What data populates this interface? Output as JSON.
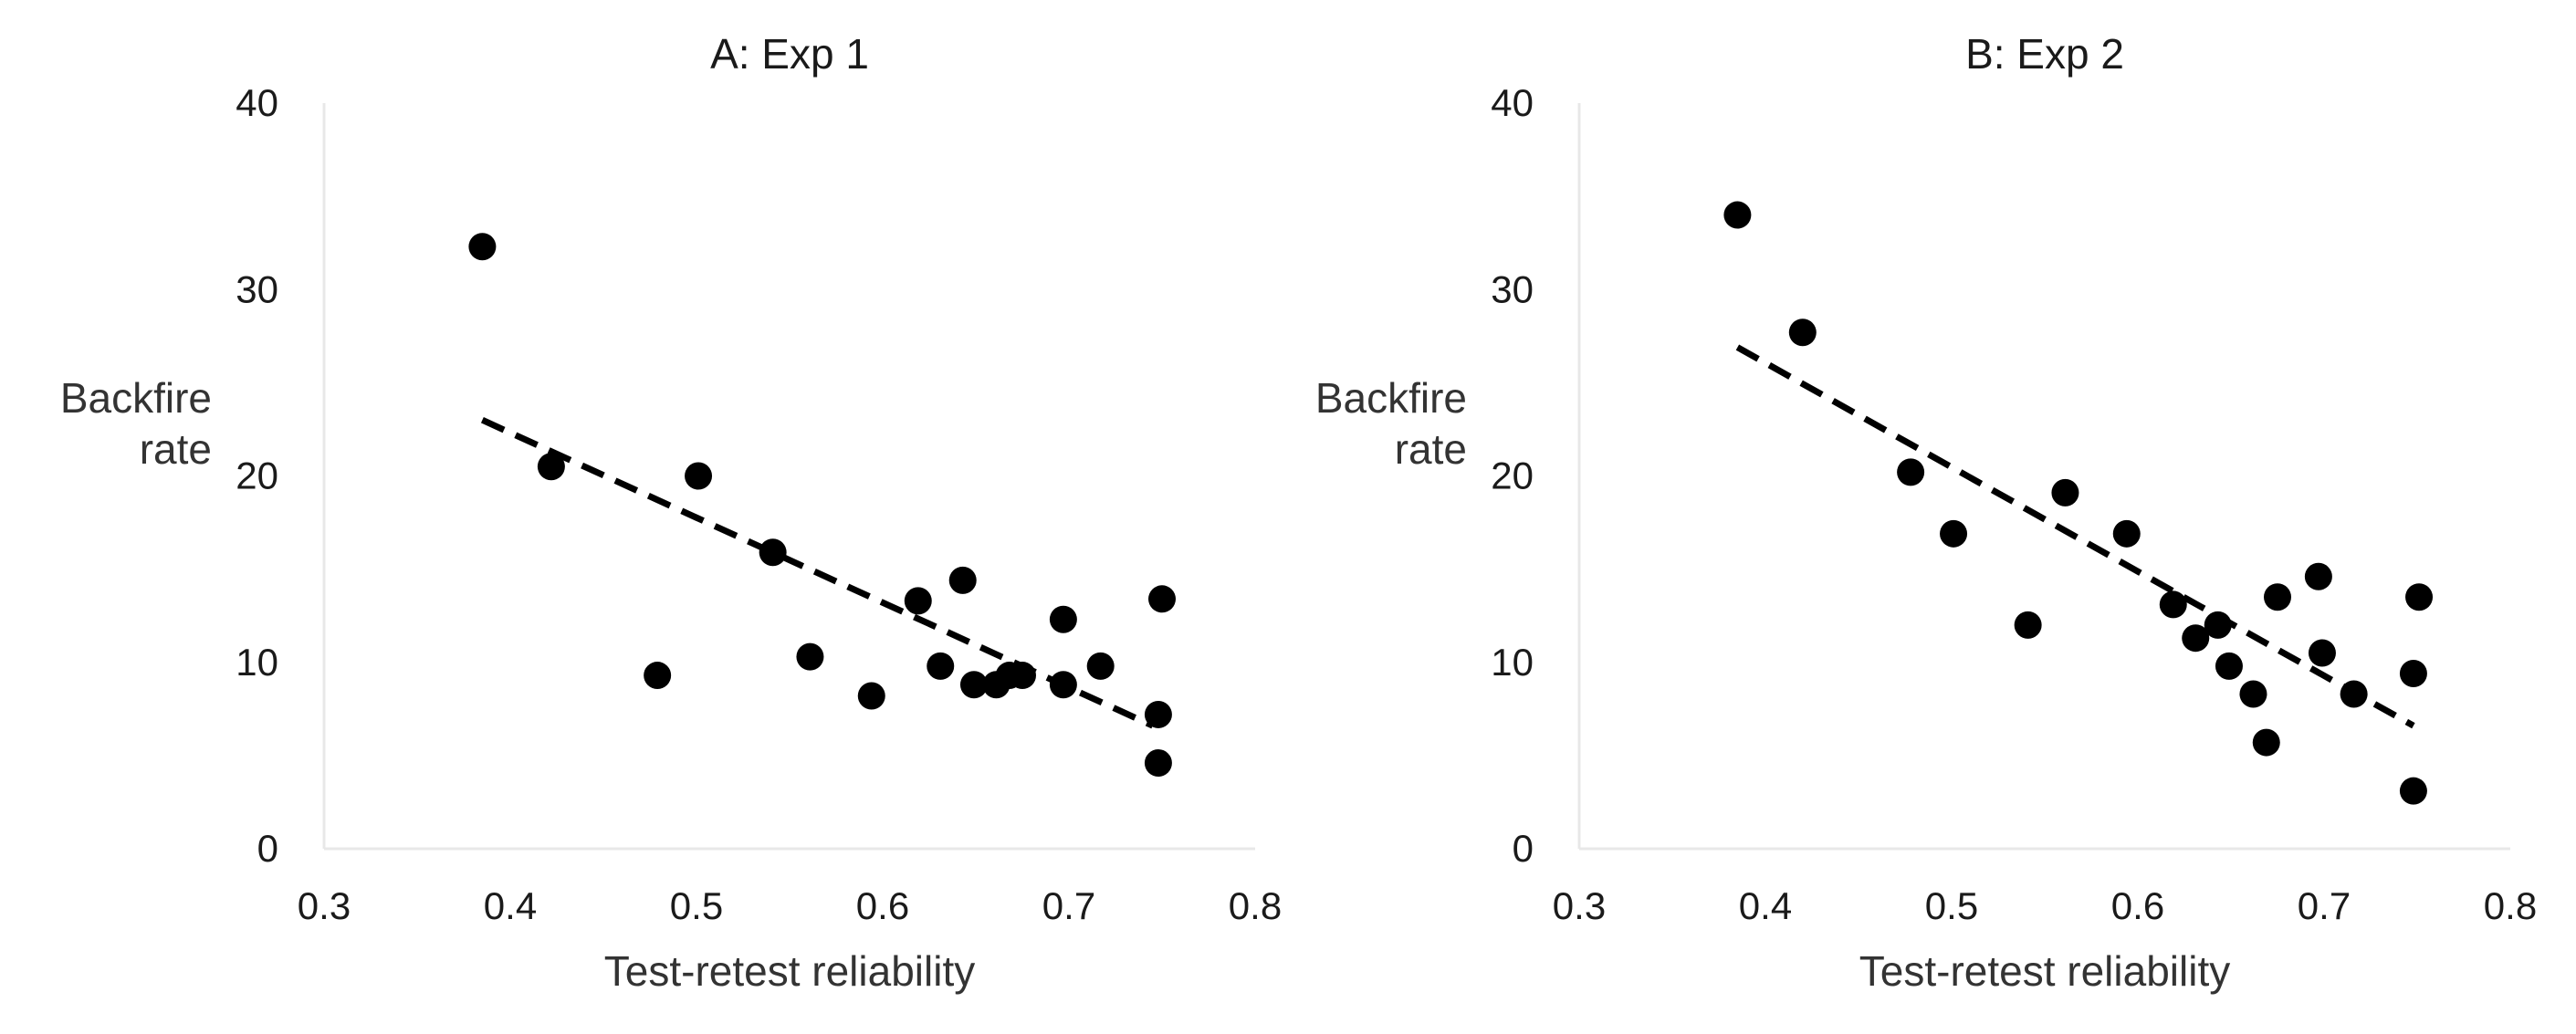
{
  "chart_data": [
    {
      "type": "scatter",
      "title": "A: Exp 1",
      "xlabel": "Test-retest reliability",
      "ylabel": [
        "Backfire",
        "rate"
      ],
      "xlim": [
        0.3,
        0.8
      ],
      "ylim": [
        0,
        40
      ],
      "xticks": [
        "0.3",
        "0.4",
        "0.5",
        "0.6",
        "0.7",
        "0.8"
      ],
      "yticks": [
        "0",
        "10",
        "20",
        "30",
        "40"
      ],
      "grid": false,
      "legend": "none",
      "trendline": {
        "style": "dashed",
        "x": [
          0.385,
          0.745
        ],
        "y": [
          23.0,
          6.6
        ]
      },
      "points": [
        {
          "x": 0.385,
          "y": 32.3
        },
        {
          "x": 0.422,
          "y": 20.5
        },
        {
          "x": 0.479,
          "y": 9.3
        },
        {
          "x": 0.501,
          "y": 20.0
        },
        {
          "x": 0.541,
          "y": 15.9
        },
        {
          "x": 0.561,
          "y": 10.3
        },
        {
          "x": 0.594,
          "y": 8.2
        },
        {
          "x": 0.619,
          "y": 13.3
        },
        {
          "x": 0.631,
          "y": 9.8
        },
        {
          "x": 0.643,
          "y": 14.4
        },
        {
          "x": 0.649,
          "y": 8.8
        },
        {
          "x": 0.661,
          "y": 8.8
        },
        {
          "x": 0.668,
          "y": 9.3
        },
        {
          "x": 0.675,
          "y": 9.3
        },
        {
          "x": 0.697,
          "y": 12.3
        },
        {
          "x": 0.697,
          "y": 8.8
        },
        {
          "x": 0.717,
          "y": 9.8
        },
        {
          "x": 0.748,
          "y": 7.2
        },
        {
          "x": 0.748,
          "y": 4.6
        },
        {
          "x": 0.75,
          "y": 13.4
        }
      ]
    },
    {
      "type": "scatter",
      "title": "B: Exp 2",
      "xlabel": "Test-retest reliability",
      "ylabel": [
        "Backfire",
        "rate"
      ],
      "xlim": [
        0.3,
        0.8
      ],
      "ylim": [
        0,
        40
      ],
      "xticks": [
        "0.3",
        "0.4",
        "0.5",
        "0.6",
        "0.7",
        "0.8"
      ],
      "yticks": [
        "0",
        "10",
        "20",
        "30",
        "40"
      ],
      "grid": false,
      "legend": "none",
      "trendline": {
        "style": "dashed",
        "x": [
          0.385,
          0.748
        ],
        "y": [
          26.9,
          6.6
        ]
      },
      "points": [
        {
          "x": 0.385,
          "y": 34.0
        },
        {
          "x": 0.42,
          "y": 27.7
        },
        {
          "x": 0.478,
          "y": 20.2
        },
        {
          "x": 0.501,
          "y": 16.9
        },
        {
          "x": 0.541,
          "y": 12.0
        },
        {
          "x": 0.561,
          "y": 19.1
        },
        {
          "x": 0.594,
          "y": 16.9
        },
        {
          "x": 0.619,
          "y": 13.1
        },
        {
          "x": 0.631,
          "y": 11.3
        },
        {
          "x": 0.643,
          "y": 12.0
        },
        {
          "x": 0.649,
          "y": 9.8
        },
        {
          "x": 0.662,
          "y": 8.3
        },
        {
          "x": 0.669,
          "y": 5.7
        },
        {
          "x": 0.675,
          "y": 13.5
        },
        {
          "x": 0.697,
          "y": 14.6
        },
        {
          "x": 0.699,
          "y": 10.5
        },
        {
          "x": 0.716,
          "y": 8.3
        },
        {
          "x": 0.748,
          "y": 9.4
        },
        {
          "x": 0.748,
          "y": 3.1
        },
        {
          "x": 0.751,
          "y": 13.5
        }
      ]
    }
  ]
}
